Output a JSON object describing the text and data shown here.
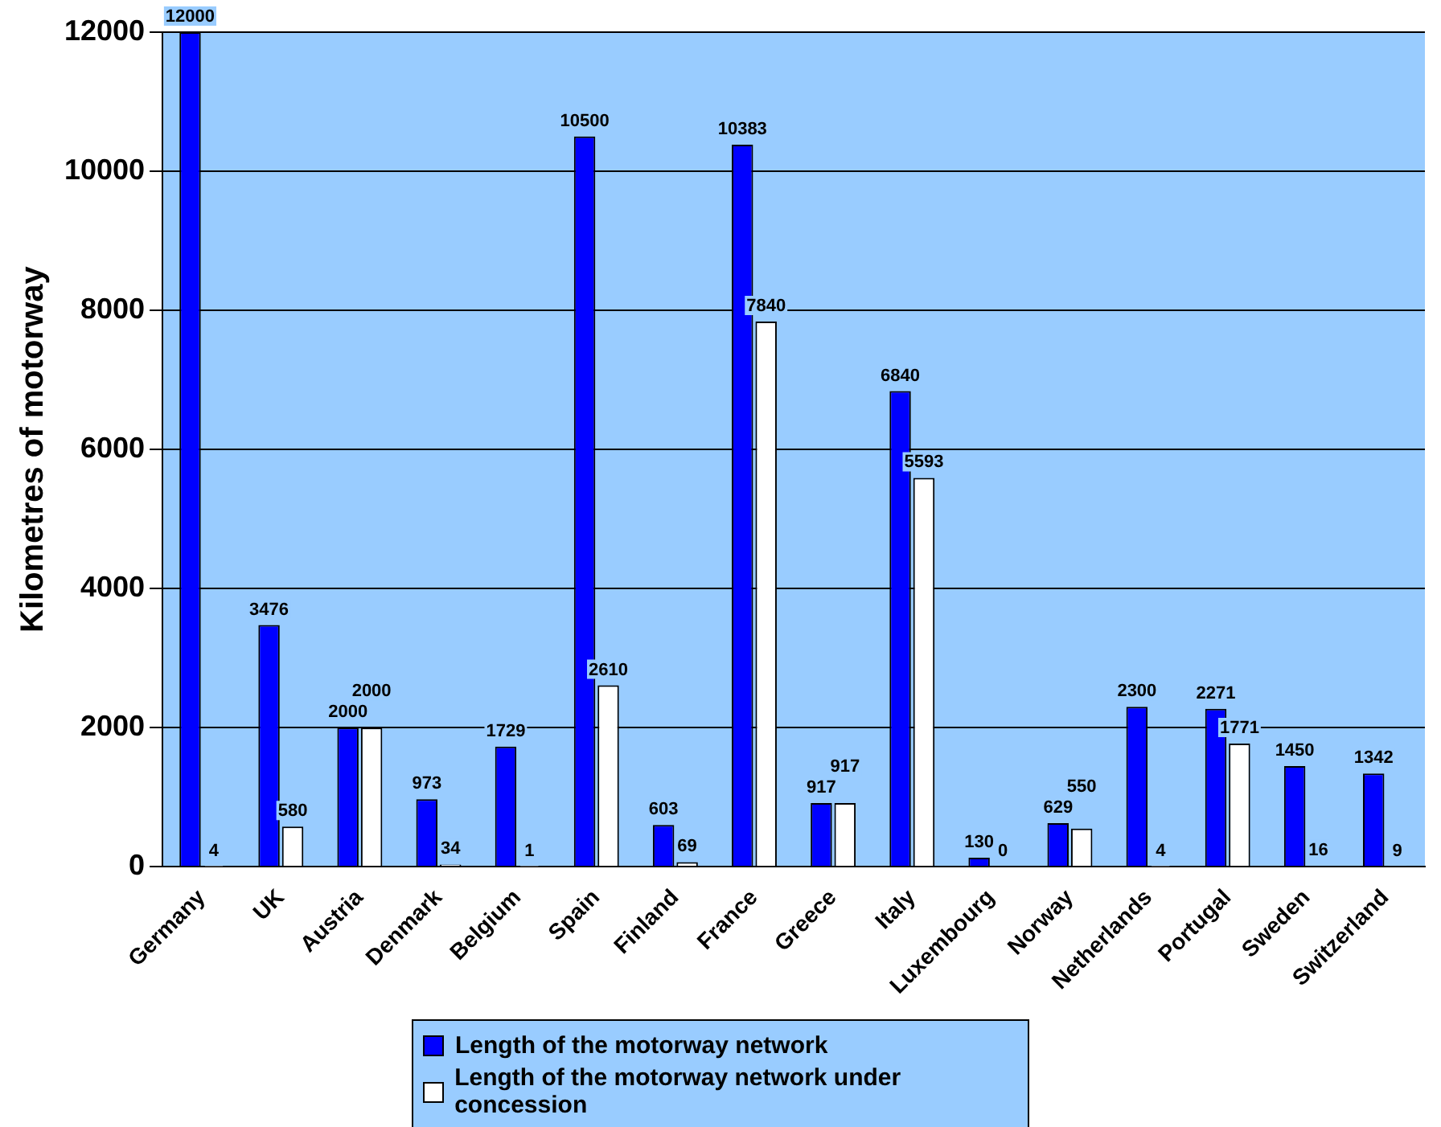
{
  "chart_data": {
    "type": "bar",
    "ylabel": "Kilometres of motorway",
    "categories": [
      "Germany",
      "UK",
      "Austria",
      "Denmark",
      "Belgium",
      "Spain",
      "Finland",
      "France",
      "Greece",
      "Italy",
      "Luxembourg",
      "Norway",
      "Netherlands",
      "Portugal",
      "Sweden",
      "Switzerland"
    ],
    "series": [
      {
        "name": "Length of the motorway network",
        "color": "#0000ff",
        "values": [
          12000,
          3476,
          2000,
          973,
          1729,
          10500,
          603,
          10383,
          917,
          6840,
          130,
          629,
          2300,
          2271,
          1450,
          1342
        ]
      },
      {
        "name": "Length of the motorway network under concession",
        "color": "#ffffff",
        "values": [
          4,
          580,
          2000,
          34,
          1,
          2610,
          69,
          7840,
          917,
          5593,
          0,
          550,
          4,
          1771,
          16,
          9
        ]
      }
    ],
    "ylim": [
      0,
      12000
    ],
    "yticks": [
      0,
      2000,
      4000,
      6000,
      8000,
      10000,
      12000
    ],
    "grid": "y",
    "legend": "bottom",
    "data_labels": true
  }
}
